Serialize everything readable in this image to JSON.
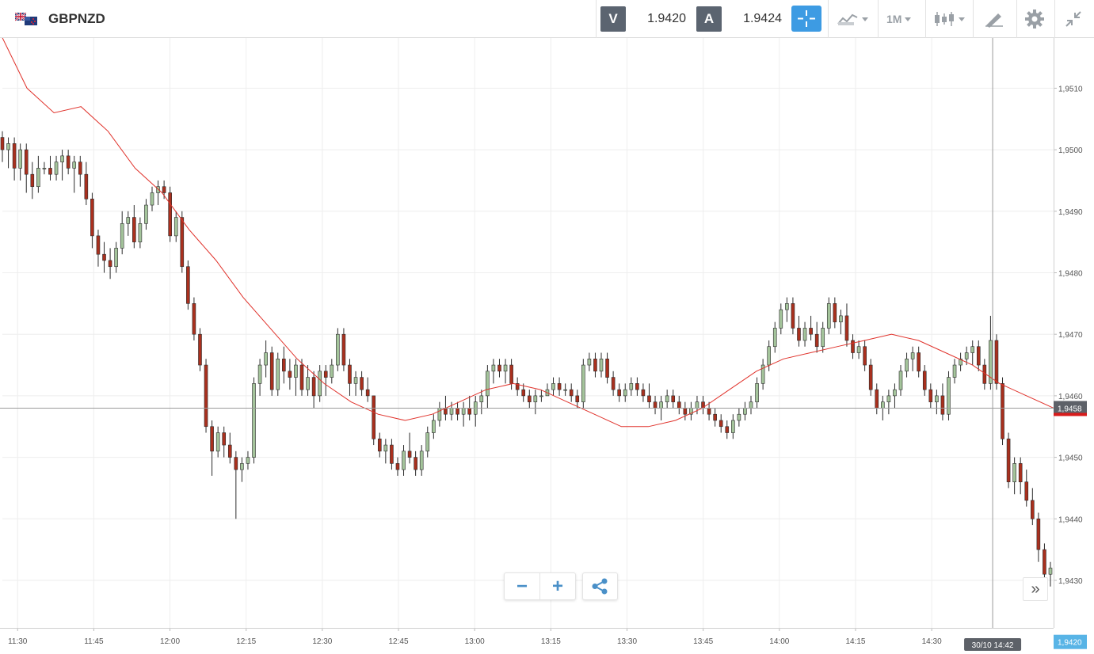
{
  "toolbar": {
    "symbol": "GBPNZD",
    "flag_icon": "gb-nz-flag-icon",
    "bid_letter": "V",
    "bid_value": "1.9420",
    "ask_letter": "A",
    "ask_value": "1.9424",
    "timeframe": "1M",
    "icons": [
      "crosshair-icon",
      "chart-type-icon",
      "candlestick-icon",
      "draw-tools-icon",
      "gear-icon",
      "collapse-icon"
    ]
  },
  "controls": {
    "zoom_out": "−",
    "zoom_in": "+",
    "scroll": "»"
  },
  "colors": {
    "up": "#a4c49b",
    "down": "#a9301e",
    "wick": "#2b2b2b",
    "ma": "#e0322b",
    "accent": "#3d9be3",
    "crosshair_label": "#5d6168",
    "bid_label": "#58b4e6"
  },
  "chart_data": {
    "type": "candlestick",
    "ylim": [
      1.9418,
      1.9519
    ],
    "y_ticks": [
      "1,9430",
      "1,9440",
      "1,9450",
      "1,9460",
      "1,9470",
      "1,9480",
      "1,9490",
      "1,9500",
      "1,9510"
    ],
    "y_tick_values": [
      1.943,
      1.944,
      1.945,
      1.946,
      1.947,
      1.948,
      1.949,
      1.95,
      1.951
    ],
    "x_ticks": [
      "11:30",
      "11:45",
      "12:00",
      "12:15",
      "12:30",
      "12:45",
      "13:00",
      "13:15",
      "13:30",
      "13:45",
      "14:00",
      "14:15",
      "14:30"
    ],
    "x_start_time": "11:27",
    "x_end_time": "14:54",
    "current_price": 1.9458,
    "current_price_label": "1,9458",
    "bid_price": 1.942,
    "bid_price_label": "1,9420",
    "crosshair_time": "14:42",
    "crosshair_price": 1.9458,
    "crosshair_label": "30/10 14:42",
    "grid": true,
    "candles_ohlc": [
      [
        1.9502,
        1.9503,
        1.9498,
        1.95
      ],
      [
        1.95,
        1.9502,
        1.9497,
        1.9501
      ],
      [
        1.9501,
        1.9502,
        1.9495,
        1.9497
      ],
      [
        1.9497,
        1.9501,
        1.9495,
        1.95
      ],
      [
        1.95,
        1.9501,
        1.9493,
        1.9496
      ],
      [
        1.9496,
        1.9498,
        1.9492,
        1.9494
      ],
      [
        1.9494,
        1.9499,
        1.9493,
        1.9497
      ],
      [
        1.9497,
        1.9498,
        1.9496,
        1.9497
      ],
      [
        1.9497,
        1.9499,
        1.9495,
        1.9496
      ],
      [
        1.9496,
        1.9499,
        1.9495,
        1.9498
      ],
      [
        1.9498,
        1.95,
        1.9495,
        1.9499
      ],
      [
        1.9499,
        1.95,
        1.9496,
        1.9497
      ],
      [
        1.9497,
        1.9499,
        1.9493,
        1.9498
      ],
      [
        1.9498,
        1.9499,
        1.9494,
        1.9496
      ],
      [
        1.9496,
        1.9498,
        1.9491,
        1.9492
      ],
      [
        1.9492,
        1.9493,
        1.9484,
        1.9486
      ],
      [
        1.9486,
        1.9487,
        1.9481,
        1.9483
      ],
      [
        1.9483,
        1.9485,
        1.948,
        1.9482
      ],
      [
        1.9482,
        1.9484,
        1.9479,
        1.9481
      ],
      [
        1.9481,
        1.9485,
        1.948,
        1.9484
      ],
      [
        1.9484,
        1.949,
        1.9483,
        1.9488
      ],
      [
        1.9488,
        1.949,
        1.9486,
        1.9489
      ],
      [
        1.9489,
        1.9491,
        1.9484,
        1.9485
      ],
      [
        1.9485,
        1.9489,
        1.9484,
        1.9488
      ],
      [
        1.9488,
        1.9492,
        1.9487,
        1.9491
      ],
      [
        1.9491,
        1.9494,
        1.949,
        1.9493
      ],
      [
        1.9493,
        1.9495,
        1.9491,
        1.9494
      ],
      [
        1.9494,
        1.9495,
        1.9492,
        1.9493
      ],
      [
        1.9493,
        1.9494,
        1.9485,
        1.9486
      ],
      [
        1.9486,
        1.949,
        1.9485,
        1.9489
      ],
      [
        1.9489,
        1.949,
        1.948,
        1.9481
      ],
      [
        1.9481,
        1.9482,
        1.9474,
        1.9475
      ],
      [
        1.9475,
        1.9476,
        1.9469,
        1.947
      ],
      [
        1.947,
        1.9471,
        1.9464,
        1.9465
      ],
      [
        1.9465,
        1.9466,
        1.9454,
        1.9455
      ],
      [
        1.9455,
        1.9456,
        1.9447,
        1.9451
      ],
      [
        1.9451,
        1.9455,
        1.945,
        1.9454
      ],
      [
        1.9454,
        1.9455,
        1.945,
        1.9452
      ],
      [
        1.9452,
        1.9454,
        1.9449,
        1.945
      ],
      [
        1.945,
        1.9451,
        1.944,
        1.9448
      ],
      [
        1.9448,
        1.945,
        1.9446,
        1.9449
      ],
      [
        1.9449,
        1.9451,
        1.9448,
        1.945
      ],
      [
        1.945,
        1.9463,
        1.9449,
        1.9462
      ],
      [
        1.9462,
        1.9466,
        1.946,
        1.9465
      ],
      [
        1.9465,
        1.9469,
        1.9463,
        1.9467
      ],
      [
        1.9467,
        1.9468,
        1.946,
        1.9461
      ],
      [
        1.9461,
        1.9467,
        1.946,
        1.9466
      ],
      [
        1.9466,
        1.9468,
        1.9462,
        1.9464
      ],
      [
        1.9464,
        1.9466,
        1.9461,
        1.9463
      ],
      [
        1.9463,
        1.9466,
        1.946,
        1.9465
      ],
      [
        1.9465,
        1.9466,
        1.946,
        1.9461
      ],
      [
        1.9461,
        1.9465,
        1.946,
        1.9463
      ],
      [
        1.9463,
        1.9464,
        1.9458,
        1.946
      ],
      [
        1.946,
        1.9465,
        1.9459,
        1.9464
      ],
      [
        1.9464,
        1.9465,
        1.946,
        1.9463
      ],
      [
        1.9463,
        1.9466,
        1.9462,
        1.9465
      ],
      [
        1.9465,
        1.9471,
        1.9464,
        1.947
      ],
      [
        1.947,
        1.9471,
        1.9464,
        1.9465
      ],
      [
        1.9465,
        1.9466,
        1.946,
        1.9462
      ],
      [
        1.9462,
        1.9464,
        1.946,
        1.9463
      ],
      [
        1.9463,
        1.9464,
        1.946,
        1.9461
      ],
      [
        1.9461,
        1.9463,
        1.9459,
        1.946
      ],
      [
        1.946,
        1.946,
        1.9452,
        1.9453
      ],
      [
        1.9453,
        1.9454,
        1.945,
        1.9451
      ],
      [
        1.9451,
        1.9453,
        1.9449,
        1.9452
      ],
      [
        1.9452,
        1.9453,
        1.9448,
        1.9449
      ],
      [
        1.9449,
        1.945,
        1.9447,
        1.9448
      ],
      [
        1.9448,
        1.9452,
        1.9447,
        1.9451
      ],
      [
        1.9451,
        1.9454,
        1.9449,
        1.945
      ],
      [
        1.945,
        1.9451,
        1.9447,
        1.9448
      ],
      [
        1.9448,
        1.9452,
        1.9447,
        1.9451
      ],
      [
        1.9451,
        1.9455,
        1.945,
        1.9454
      ],
      [
        1.9454,
        1.9457,
        1.9453,
        1.9456
      ],
      [
        1.9456,
        1.9459,
        1.9455,
        1.9458
      ],
      [
        1.9458,
        1.946,
        1.9456,
        1.9457
      ],
      [
        1.9457,
        1.9459,
        1.9456,
        1.9458
      ],
      [
        1.9458,
        1.9459,
        1.9456,
        1.9457
      ],
      [
        1.9457,
        1.9459,
        1.9455,
        1.9458
      ],
      [
        1.9458,
        1.946,
        1.9456,
        1.9457
      ],
      [
        1.9457,
        1.946,
        1.9455,
        1.9459
      ],
      [
        1.9459,
        1.9461,
        1.9457,
        1.946
      ],
      [
        1.946,
        1.9465,
        1.9458,
        1.9464
      ],
      [
        1.9464,
        1.9466,
        1.9462,
        1.9465
      ],
      [
        1.9465,
        1.9466,
        1.9463,
        1.9464
      ],
      [
        1.9464,
        1.9466,
        1.9462,
        1.9465
      ],
      [
        1.9465,
        1.9466,
        1.9461,
        1.9462
      ],
      [
        1.9462,
        1.9463,
        1.946,
        1.9461
      ],
      [
        1.9461,
        1.9462,
        1.9459,
        1.946
      ],
      [
        1.946,
        1.9461,
        1.9458,
        1.9459
      ],
      [
        1.9459,
        1.9461,
        1.9457,
        1.946
      ],
      [
        1.946,
        1.9461,
        1.9459,
        1.946
      ],
      [
        1.946,
        1.9462,
        1.946,
        1.9461
      ],
      [
        1.9461,
        1.9463,
        1.946,
        1.9462
      ],
      [
        1.9462,
        1.9463,
        1.946,
        1.9461
      ],
      [
        1.9461,
        1.9462,
        1.946,
        1.9461
      ],
      [
        1.9461,
        1.9462,
        1.9459,
        1.946
      ],
      [
        1.946,
        1.9461,
        1.9458,
        1.9459
      ],
      [
        1.9459,
        1.9466,
        1.9458,
        1.9465
      ],
      [
        1.9465,
        1.9467,
        1.9464,
        1.9466
      ],
      [
        1.9466,
        1.9467,
        1.9463,
        1.9464
      ],
      [
        1.9464,
        1.9467,
        1.9463,
        1.9466
      ],
      [
        1.9466,
        1.9467,
        1.9462,
        1.9463
      ],
      [
        1.9463,
        1.9464,
        1.946,
        1.9461
      ],
      [
        1.9461,
        1.9462,
        1.9459,
        1.946
      ],
      [
        1.946,
        1.9462,
        1.9459,
        1.9461
      ],
      [
        1.9461,
        1.9463,
        1.946,
        1.9462
      ],
      [
        1.9462,
        1.9463,
        1.946,
        1.9461
      ],
      [
        1.9461,
        1.9462,
        1.9459,
        1.946
      ],
      [
        1.946,
        1.9462,
        1.9458,
        1.9459
      ],
      [
        1.9459,
        1.946,
        1.9457,
        1.9458
      ],
      [
        1.9458,
        1.946,
        1.9456,
        1.9459
      ],
      [
        1.9459,
        1.9461,
        1.9458,
        1.946
      ],
      [
        1.946,
        1.9461,
        1.9458,
        1.9459
      ],
      [
        1.9459,
        1.946,
        1.9457,
        1.9458
      ],
      [
        1.9458,
        1.9459,
        1.9456,
        1.9457
      ],
      [
        1.9457,
        1.9459,
        1.9456,
        1.9458
      ],
      [
        1.9458,
        1.946,
        1.9457,
        1.9459
      ],
      [
        1.9459,
        1.946,
        1.9457,
        1.9458
      ],
      [
        1.9458,
        1.9459,
        1.9456,
        1.9457
      ],
      [
        1.9457,
        1.9458,
        1.9455,
        1.9456
      ],
      [
        1.9456,
        1.9457,
        1.9454,
        1.9455
      ],
      [
        1.9455,
        1.9456,
        1.9453,
        1.9454
      ],
      [
        1.9454,
        1.9457,
        1.9453,
        1.9456
      ],
      [
        1.9456,
        1.9458,
        1.9455,
        1.9457
      ],
      [
        1.9457,
        1.9459,
        1.9456,
        1.9458
      ],
      [
        1.9458,
        1.946,
        1.9457,
        1.9459
      ],
      [
        1.9459,
        1.9463,
        1.9458,
        1.9462
      ],
      [
        1.9462,
        1.9466,
        1.9461,
        1.9465
      ],
      [
        1.9465,
        1.9469,
        1.9464,
        1.9468
      ],
      [
        1.9468,
        1.9472,
        1.9467,
        1.9471
      ],
      [
        1.9471,
        1.9475,
        1.947,
        1.9474
      ],
      [
        1.9474,
        1.9476,
        1.9472,
        1.9475
      ],
      [
        1.9475,
        1.9476,
        1.947,
        1.9471
      ],
      [
        1.9471,
        1.9473,
        1.9468,
        1.9469
      ],
      [
        1.9469,
        1.9472,
        1.9468,
        1.9471
      ],
      [
        1.9471,
        1.9473,
        1.9469,
        1.947
      ],
      [
        1.947,
        1.9472,
        1.9467,
        1.9468
      ],
      [
        1.9468,
        1.9472,
        1.9467,
        1.9471
      ],
      [
        1.9471,
        1.9476,
        1.947,
        1.9475
      ],
      [
        1.9475,
        1.9476,
        1.9471,
        1.9472
      ],
      [
        1.9472,
        1.9474,
        1.947,
        1.9473
      ],
      [
        1.9473,
        1.9475,
        1.9468,
        1.9469
      ],
      [
        1.9469,
        1.947,
        1.9466,
        1.9467
      ],
      [
        1.9467,
        1.9469,
        1.9466,
        1.9468
      ],
      [
        1.9468,
        1.9469,
        1.9464,
        1.9465
      ],
      [
        1.9465,
        1.9466,
        1.946,
        1.9461
      ],
      [
        1.9461,
        1.9462,
        1.9457,
        1.9458
      ],
      [
        1.9458,
        1.946,
        1.9456,
        1.9459
      ],
      [
        1.9459,
        1.9461,
        1.9457,
        1.946
      ],
      [
        1.946,
        1.9462,
        1.9458,
        1.9461
      ],
      [
        1.9461,
        1.9465,
        1.946,
        1.9464
      ],
      [
        1.9464,
        1.9467,
        1.9463,
        1.9466
      ],
      [
        1.9466,
        1.9468,
        1.9464,
        1.9467
      ],
      [
        1.9467,
        1.9468,
        1.9463,
        1.9464
      ],
      [
        1.9464,
        1.9465,
        1.946,
        1.9461
      ],
      [
        1.9461,
        1.9462,
        1.9458,
        1.9459
      ],
      [
        1.9459,
        1.9461,
        1.9457,
        1.946
      ],
      [
        1.946,
        1.9462,
        1.9456,
        1.9457
      ],
      [
        1.9457,
        1.9464,
        1.9456,
        1.9463
      ],
      [
        1.9463,
        1.9466,
        1.9462,
        1.9465
      ],
      [
        1.9465,
        1.9467,
        1.9464,
        1.9466
      ],
      [
        1.9466,
        1.9468,
        1.9465,
        1.9467
      ],
      [
        1.9467,
        1.9469,
        1.9465,
        1.9468
      ],
      [
        1.9468,
        1.9469,
        1.9464,
        1.9465
      ],
      [
        1.9465,
        1.9466,
        1.9461,
        1.9462
      ],
      [
        1.9462,
        1.9473,
        1.9461,
        1.9469
      ],
      [
        1.9469,
        1.947,
        1.9461,
        1.9462
      ],
      [
        1.9462,
        1.9463,
        1.9452,
        1.9453
      ],
      [
        1.9453,
        1.9454,
        1.9445,
        1.9446
      ],
      [
        1.9446,
        1.945,
        1.9444,
        1.9449
      ],
      [
        1.9449,
        1.945,
        1.9444,
        1.9446
      ],
      [
        1.9446,
        1.9448,
        1.9442,
        1.9443
      ],
      [
        1.9443,
        1.9445,
        1.9439,
        1.944
      ],
      [
        1.944,
        1.9441,
        1.9433,
        1.9435
      ],
      [
        1.9435,
        1.9436,
        1.943,
        1.9431
      ],
      [
        1.9431,
        1.9433,
        1.9429,
        1.9432
      ]
    ],
    "ma": [
      [
        1.9519,
        1.951
      ],
      [
        1.9506,
        1.9507
      ],
      [
        1.9503,
        1.9497
      ],
      [
        1.9493,
        1.9487
      ],
      [
        1.9482,
        1.9476
      ],
      [
        1.9471,
        1.9466
      ],
      [
        1.9462,
        1.9459
      ],
      [
        1.9457,
        1.9456
      ],
      [
        1.9457,
        1.9459
      ],
      [
        1.9461,
        1.9462
      ],
      [
        1.9461,
        1.9459
      ],
      [
        1.9457,
        1.9455
      ],
      [
        1.9455,
        1.9456
      ],
      [
        1.9458,
        1.9461
      ],
      [
        1.9464,
        1.9466
      ],
      [
        1.9467,
        1.9468
      ],
      [
        1.9469,
        1.947
      ],
      [
        1.9469,
        1.9467
      ],
      [
        1.9465,
        1.9462
      ],
      [
        1.946,
        1.9458
      ]
    ],
    "ma_note": "moving average sampled at even time steps"
  }
}
